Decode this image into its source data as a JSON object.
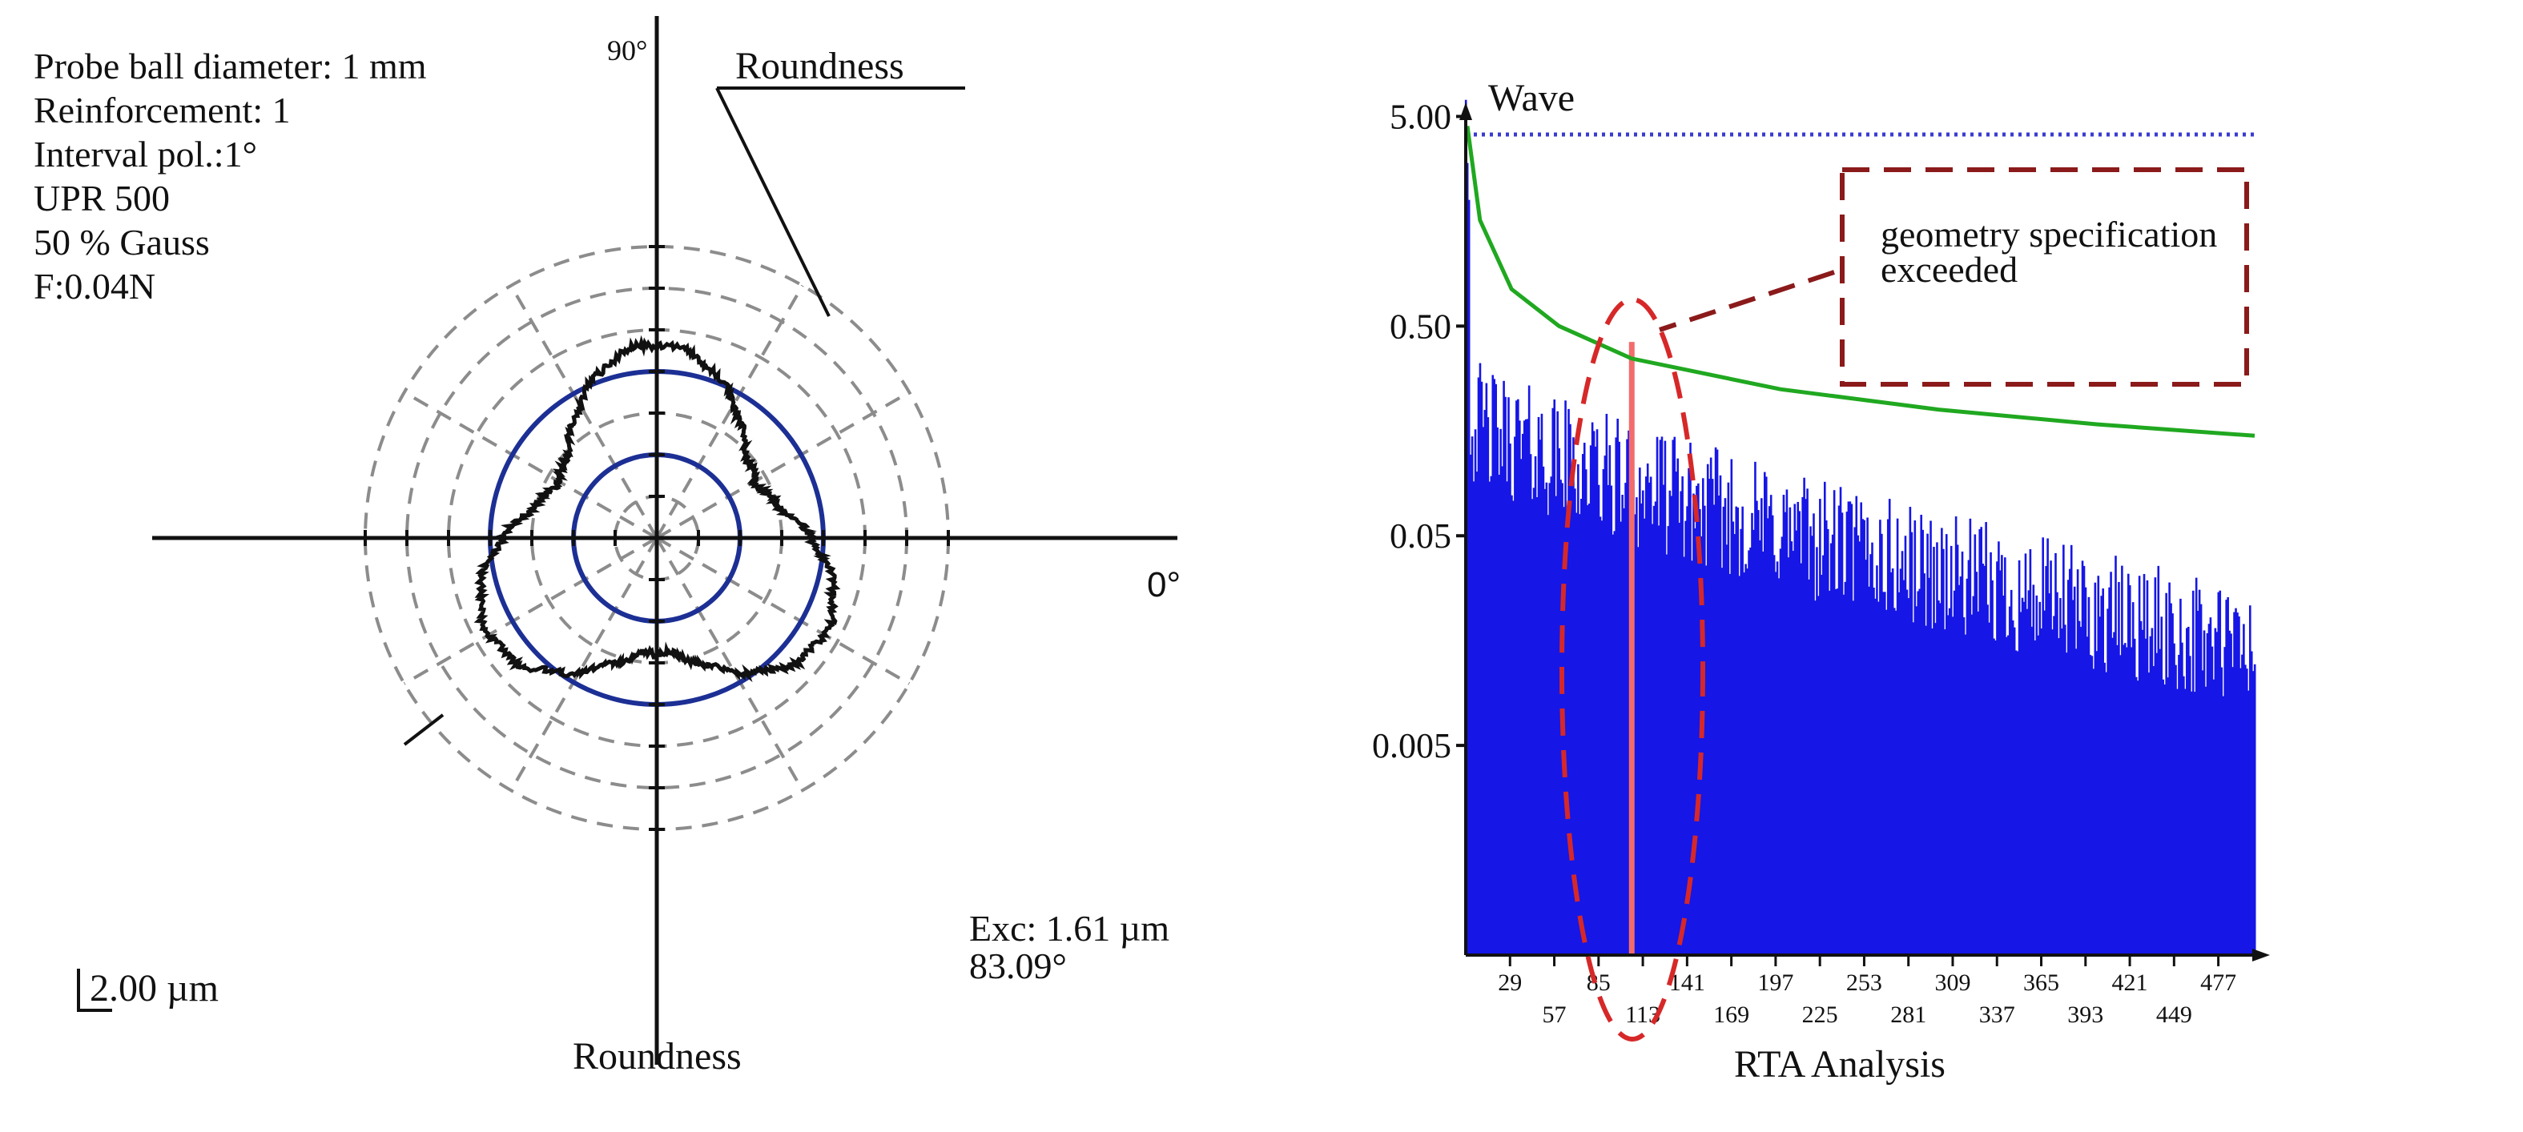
{
  "chart_data": [
    {
      "type": "polar",
      "title": "Roundness",
      "bottom_title": "Roundness",
      "callout_label": "Roundness",
      "info_lines": [
        "Probe ball diameter: 1 mm",
        "Reinforcement: 1",
        "Interval pol.:1°",
        "UPR 500",
        "50 % Gauss",
        "F:0.04N"
      ],
      "angle_labels": {
        "top": "90°",
        "right": "0°"
      },
      "scale_label": "2.00 µm",
      "eccentricity": {
        "value_label": "Exc: 1.61 µm",
        "angle_label": "83.09°"
      },
      "grid": {
        "dashed_rings": 7,
        "solid_rings": 2,
        "radial_lines": 12
      },
      "profile": {
        "description": "roughly triangular roundness trace with three lobes (up, lower-left, right)",
        "lobes": 3,
        "phase_deg": 90,
        "mean_radius_units": 3.7,
        "lobe_amplitude_units": 0.95,
        "noise_units": 0.08
      },
      "colors": {
        "solid_ring": "#1c2f94",
        "dashed_ring": "#8c8c8c",
        "trace": "#111111"
      }
    },
    {
      "type": "bar",
      "scale": "log",
      "title": "Wave",
      "xlabel": "RTA Analysis",
      "y_ticks": [
        "5.00",
        "0.50",
        "0.05",
        "0.005"
      ],
      "y_tick_values": [
        5,
        0.5,
        0.05,
        0.005
      ],
      "ylim": [
        0.0005,
        8
      ],
      "x_tick_labels_upper": [
        "29",
        "85",
        "141",
        "197",
        "253",
        "309",
        "365",
        "421",
        "477"
      ],
      "x_tick_labels_lower": [
        "57",
        "113",
        "169",
        "225",
        "281",
        "337",
        "393",
        "449"
      ],
      "x_range": [
        1,
        500
      ],
      "spectrum": {
        "description": "dense blue bars decaying from ~5 at wave 1 to ~0.01 at wave 500",
        "peak": 6,
        "level_start": 0.2,
        "level_end": 0.015,
        "spread": 0.6
      },
      "highlight": {
        "wave": 106,
        "value": 0.42,
        "color": "#f26c6c"
      },
      "limit_line": {
        "value": 4.1,
        "color": "#3b3bd0"
      },
      "tolerance_curve": {
        "values": [
          [
            2,
            4.5
          ],
          [
            10,
            1.6
          ],
          [
            30,
            0.75
          ],
          [
            60,
            0.5
          ],
          [
            106,
            0.35
          ],
          [
            200,
            0.25
          ],
          [
            300,
            0.2
          ],
          [
            400,
            0.17
          ],
          [
            500,
            0.15
          ]
        ],
        "color": "#20a820"
      },
      "annotation": "geometry specification exceeded",
      "annotation_lines": [
        "geometry specification",
        "exceeded"
      ],
      "colors": {
        "bars": "#1616e6",
        "annotation": "#8b1a1a"
      }
    }
  ]
}
